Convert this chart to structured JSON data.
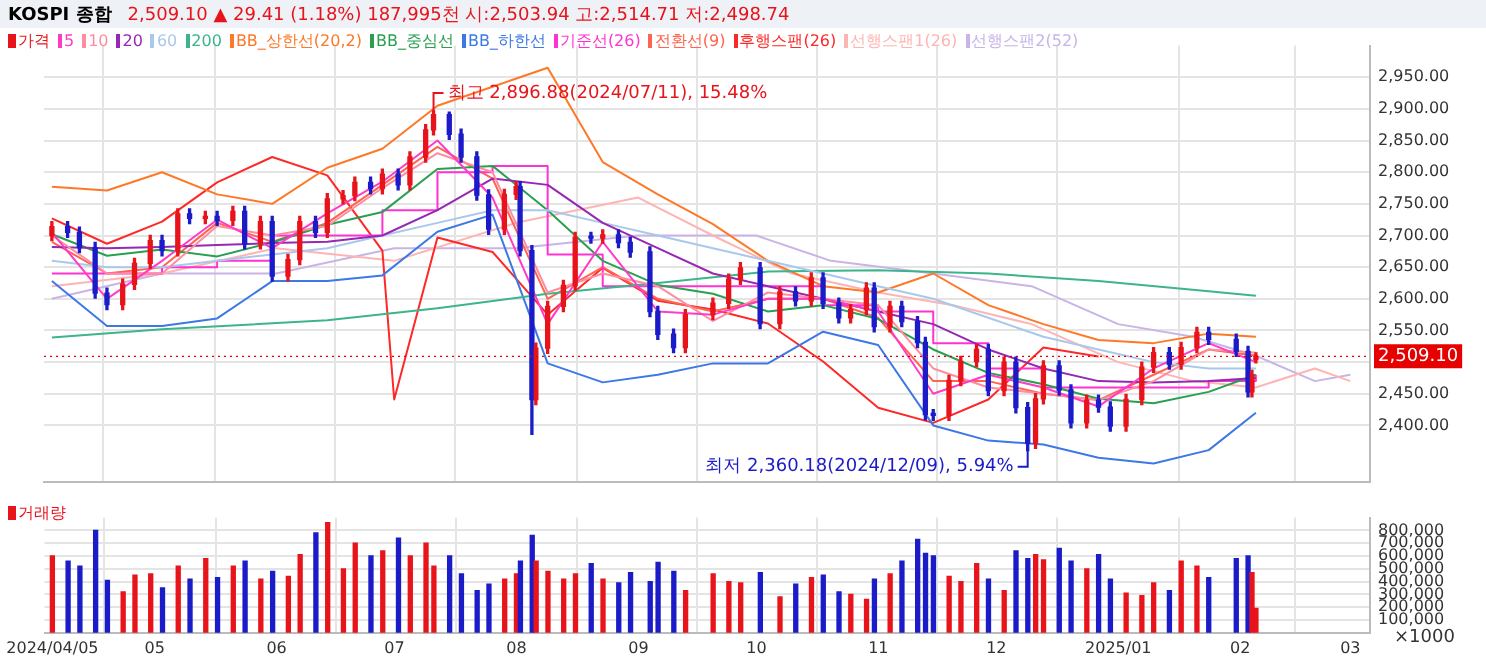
{
  "chart_data": [
    {
      "type": "candlestick",
      "title": "KOSPI 종합",
      "subtitle": "2,509.10 ▲ 29.41 (1.18%)  187,995천  시:2,503.94  고:2,514.71  저:2,498.74",
      "x": [
        "2024-04-05",
        "2024-04-19",
        "2024-05-03",
        "2024-05-17",
        "2024-05-31",
        "2024-06-14",
        "2024-06-28",
        "2024-07-12",
        "2024-07-26",
        "2024-08-09",
        "2024-08-23",
        "2024-09-06",
        "2024-09-20",
        "2024-10-04",
        "2024-10-18",
        "2024-11-01",
        "2024-11-15",
        "2024-11-29",
        "2024-12-13",
        "2024-12-27",
        "2025-01-10",
        "2025-01-24",
        "2025-02-05"
      ],
      "series": [
        {
          "name": "가격",
          "colors": [
            "#e8141b",
            "#1b1bc8",
            "#1b1bc8",
            "#1b1bc8",
            "#1b1bc8",
            "#e8141b",
            "#e8141b",
            "#e8141b",
            "#1b1bc8",
            "#e8141b",
            "#1b1bc8",
            "#e8141b",
            "#1b1bc8",
            "#e8141b",
            "#1b1bc8",
            "#e8141b",
            "#1b1bc8",
            "#e8141b",
            "#e8141b",
            "#1b1bc8",
            "#e8141b",
            "#e8141b",
            "#e8141b",
            "#1b1bc8",
            "#e8141b",
            "#1b1bc8",
            "#e8141b",
            "#e8141b",
            "#e8141b",
            "#1b1bc8",
            "#1b1bc8",
            "#1b1bc8",
            "#1b1bc8",
            "#e8141b",
            "#e8141b",
            "#1b1bc8",
            "#1b1bc8",
            "#e8141b",
            "#e8141b",
            "#e8141b",
            "#e8141b",
            "#1b1bc8",
            "#e8141b",
            "#1b1bc8",
            "#1b1bc8",
            "#1b1bc8",
            "#1b1bc8",
            "#1b1bc8",
            "#e8141b",
            "#e8141b",
            "#e8141b",
            "#e8141b",
            "#1b1bc8",
            "#e8141b",
            "#1b1bc8",
            "#e8141b",
            "#1b1bc8",
            "#1b1bc8",
            "#e8141b",
            "#e8141b",
            "#1b1bc8",
            "#e8141b",
            "#1b1bc8",
            "#1b1bc8",
            "#1b1bc8",
            "#1b1bc8",
            "#e8141b",
            "#e8141b",
            "#e8141b",
            "#1b1bc8",
            "#e8141b",
            "#1b1bc8",
            "#1b1bc8",
            "#e8141b",
            "#e8141b",
            "#1b1bc8",
            "#1b1bc8",
            "#e8141b",
            "#1b1bc8",
            "#1b1bc8",
            "#e8141b",
            "#e8141b",
            "#e8141b",
            "#1b1bc8",
            "#e8141b",
            "#e8141b",
            "#1b1bc8",
            "#1b1bc8",
            "#1b1bc8",
            "#e8141b",
            "#e8141b"
          ],
          "x": [
            "2024-04-05",
            "2024-04-09",
            "2024-04-12",
            "2024-04-16",
            "2024-04-19",
            "2024-04-23",
            "2024-04-26",
            "2024-04-30",
            "2024-05-03",
            "2024-05-07",
            "2024-05-10",
            "2024-05-14",
            "2024-05-17",
            "2024-05-21",
            "2024-05-24",
            "2024-05-28",
            "2024-05-31",
            "2024-06-04",
            "2024-06-07",
            "2024-06-11",
            "2024-06-14",
            "2024-06-18",
            "2024-06-21",
            "2024-06-25",
            "2024-06-28",
            "2024-07-02",
            "2024-07-05",
            "2024-07-09",
            "2024-07-11",
            "2024-07-15",
            "2024-07-18",
            "2024-07-22",
            "2024-07-25",
            "2024-07-29",
            "2024-08-01",
            "2024-08-02",
            "2024-08-05",
            "2024-08-06",
            "2024-08-09",
            "2024-08-13",
            "2024-08-16",
            "2024-08-20",
            "2024-08-23",
            "2024-08-27",
            "2024-08-30",
            "2024-09-04",
            "2024-09-06",
            "2024-09-10",
            "2024-09-13",
            "2024-09-20",
            "2024-09-24",
            "2024-09-27",
            "2024-10-02",
            "2024-10-07",
            "2024-10-11",
            "2024-10-15",
            "2024-10-18",
            "2024-10-22",
            "2024-10-25",
            "2024-10-29",
            "2024-10-31",
            "2024-11-04",
            "2024-11-07",
            "2024-11-11",
            "2024-11-13",
            "2024-11-15",
            "2024-11-19",
            "2024-11-22",
            "2024-11-26",
            "2024-11-29",
            "2024-12-03",
            "2024-12-06",
            "2024-12-09",
            "2024-12-11",
            "2024-12-13",
            "2024-12-17",
            "2024-12-20",
            "2024-12-24",
            "2024-12-27",
            "2024-12-30",
            "2025-01-03",
            "2025-01-07",
            "2025-01-10",
            "2025-01-14",
            "2025-01-17",
            "2025-01-21",
            "2025-01-24",
            "2025-01-31",
            "2025-02-03",
            "2025-02-04",
            "2025-02-05"
          ],
          "ohlc": [
            [
              2700,
              2722,
              2692,
              2714
            ],
            [
              2714,
              2722,
              2697,
              2705
            ],
            [
              2705,
              2713,
              2673,
              2681
            ],
            [
              2681,
              2689,
              2601,
              2609
            ],
            [
              2609,
              2617,
              2583,
              2591
            ],
            [
              2591,
              2631,
              2583,
              2623
            ],
            [
              2623,
              2664,
              2615,
              2656
            ],
            [
              2656,
              2700,
              2648,
              2692
            ],
            [
              2692,
              2700,
              2668,
              2676
            ],
            [
              2676,
              2742,
              2668,
              2734
            ],
            [
              2734,
              2742,
              2719,
              2727
            ],
            [
              2727,
              2738,
              2719,
              2730
            ],
            [
              2730,
              2738,
              2716,
              2724
            ],
            [
              2724,
              2746,
              2716,
              2738
            ],
            [
              2738,
              2746,
              2679,
              2687
            ],
            [
              2687,
              2730,
              2679,
              2722
            ],
            [
              2722,
              2730,
              2628,
              2636
            ],
            [
              2636,
              2670,
              2628,
              2662
            ],
            [
              2662,
              2730,
              2654,
              2722
            ],
            [
              2722,
              2730,
              2697,
              2705
            ],
            [
              2705,
              2766,
              2697,
              2758
            ],
            [
              2758,
              2771,
              2750,
              2763
            ],
            [
              2763,
              2792,
              2755,
              2784
            ],
            [
              2784,
              2792,
              2766,
              2774
            ],
            [
              2774,
              2805,
              2766,
              2797
            ],
            [
              2797,
              2805,
              2772,
              2780
            ],
            [
              2780,
              2832,
              2772,
              2824
            ],
            [
              2824,
              2875,
              2816,
              2867
            ],
            [
              2867,
              2896.88,
              2859,
              2891
            ],
            [
              2891,
              2895,
              2852,
              2860
            ],
            [
              2860,
              2868,
              2816,
              2824
            ],
            [
              2824,
              2832,
              2756,
              2764
            ],
            [
              2764,
              2772,
              2702,
              2710
            ],
            [
              2710,
              2773,
              2702,
              2765
            ],
            [
              2765,
              2785,
              2757,
              2777
            ],
            [
              2777,
              2785,
              2668,
              2676
            ],
            [
              2676,
              2684,
              2386,
              2441
            ],
            [
              2441,
              2530,
              2433,
              2522
            ],
            [
              2522,
              2596,
              2514,
              2588
            ],
            [
              2588,
              2629,
              2580,
              2621
            ],
            [
              2621,
              2705,
              2613,
              2697
            ],
            [
              2697,
              2705,
              2688,
              2696
            ],
            [
              2696,
              2709,
              2688,
              2701
            ],
            [
              2701,
              2709,
              2681,
              2689
            ],
            [
              2689,
              2697,
              2666,
              2674
            ],
            [
              2674,
              2682,
              2572,
              2580
            ],
            [
              2580,
              2588,
              2536,
              2544
            ],
            [
              2544,
              2552,
              2515,
              2523
            ],
            [
              2523,
              2583,
              2515,
              2575
            ],
            [
              2575,
              2601,
              2567,
              2593
            ],
            [
              2593,
              2639,
              2585,
              2631
            ],
            [
              2631,
              2657,
              2623,
              2649
            ],
            [
              2649,
              2657,
              2553,
              2561
            ],
            [
              2561,
              2619,
              2553,
              2611
            ],
            [
              2611,
              2619,
              2589,
              2597
            ],
            [
              2597,
              2641,
              2589,
              2633
            ],
            [
              2633,
              2641,
              2585,
              2593
            ],
            [
              2593,
              2601,
              2562,
              2570
            ],
            [
              2570,
              2591,
              2562,
              2583
            ],
            [
              2583,
              2625,
              2575,
              2617
            ],
            [
              2617,
              2625,
              2548,
              2556
            ],
            [
              2556,
              2596,
              2548,
              2588
            ],
            [
              2588,
              2596,
              2556,
              2564
            ],
            [
              2564,
              2572,
              2523,
              2531
            ],
            [
              2531,
              2539,
              2409,
              2417
            ],
            [
              2417,
              2425,
              2408,
              2416
            ],
            [
              2416,
              2479,
              2408,
              2471
            ],
            [
              2471,
              2509,
              2463,
              2501
            ],
            [
              2501,
              2528,
              2493,
              2520
            ],
            [
              2520,
              2528,
              2447,
              2455
            ],
            [
              2455,
              2508,
              2447,
              2500
            ],
            [
              2500,
              2508,
              2420,
              2428
            ],
            [
              2428,
              2436,
              2360.18,
              2372
            ],
            [
              2372,
              2450,
              2364,
              2442
            ],
            [
              2442,
              2502,
              2434,
              2494
            ],
            [
              2494,
              2502,
              2448,
              2456
            ],
            [
              2456,
              2464,
              2396,
              2404
            ],
            [
              2404,
              2448,
              2396,
              2440
            ],
            [
              2440,
              2448,
              2421,
              2429
            ],
            [
              2429,
              2437,
              2391,
              2399
            ],
            [
              2399,
              2449,
              2391,
              2441
            ],
            [
              2441,
              2500,
              2433,
              2492
            ],
            [
              2492,
              2523,
              2484,
              2515
            ],
            [
              2515,
              2523,
              2489,
              2497
            ],
            [
              2497,
              2531,
              2489,
              2523
            ],
            [
              2523,
              2555,
              2515,
              2547
            ],
            [
              2547,
              2555,
              2528,
              2536
            ],
            [
              2536,
              2544,
              2509,
              2517
            ],
            [
              2517,
              2525,
              2445,
              2453
            ],
            [
              2453,
              2487,
              2445,
              2479.69
            ],
            [
              2503.94,
              2514.71,
              2498.74,
              2509.1
            ]
          ]
        },
        {
          "name": "5",
          "type": "line",
          "color": "#ff3cc8",
          "values": [
            2705,
            2600,
            2660,
            2725,
            2680,
            2735,
            2785,
            2850,
            2760,
            2560,
            2690,
            2580,
            2575,
            2600,
            2600,
            2580,
            2450,
            2480,
            2460,
            2430,
            2490,
            2530,
            2500
          ]
        },
        {
          "name": "10",
          "type": "line",
          "color": "#ff8ca0",
          "values": [
            2700,
            2640,
            2640,
            2715,
            2700,
            2715,
            2775,
            2830,
            2800,
            2610,
            2640,
            2620,
            2565,
            2610,
            2600,
            2590,
            2490,
            2460,
            2450,
            2440,
            2470,
            2520,
            2515
          ]
        },
        {
          "name": "20",
          "type": "line",
          "color": "#9628b4",
          "values": [
            2682,
            2680,
            2682,
            2685,
            2688,
            2690,
            2700,
            2740,
            2790,
            2780,
            2720,
            2680,
            2640,
            2620,
            2600,
            2580,
            2560,
            2520,
            2490,
            2470,
            2468,
            2470,
            2475
          ]
        },
        {
          "name": "60",
          "type": "line",
          "color": "#a8c8ec",
          "values": [
            2660,
            2650,
            2650,
            2660,
            2670,
            2680,
            2700,
            2720,
            2740,
            2740,
            2720,
            2700,
            2680,
            2660,
            2640,
            2620,
            2600,
            2570,
            2540,
            2520,
            2500,
            2490,
            2490
          ]
        },
        {
          "name": "200",
          "type": "line",
          "color": "#3cb48c",
          "x": [
            "2024-04-05",
            "2024-05-03",
            "2024-06-14",
            "2024-07-12",
            "2024-08-09",
            "2024-09-06",
            "2024-10-04",
            "2024-11-01",
            "2024-11-29",
            "2024-12-27",
            "2025-01-24",
            "2025-02-05"
          ],
          "values": [
            2539,
            2552,
            2566,
            2585,
            2608,
            2625,
            2643,
            2645,
            2640,
            2628,
            2612,
            2605
          ]
        },
        {
          "name": "BB_상한선(20,2)",
          "type": "line",
          "color": "#ff7828",
          "values": [
            2777,
            2771,
            2800,
            2765,
            2750,
            2807,
            2837,
            2905,
            2935,
            2965,
            2816,
            2765,
            2718,
            2660,
            2620,
            2610,
            2640,
            2590,
            2560,
            2535,
            2530,
            2545,
            2540
          ]
        },
        {
          "name": "BB_중심선",
          "type": "line",
          "color": "#28a050",
          "values": [
            2702,
            2668,
            2678,
            2667,
            2689,
            2717,
            2737,
            2805,
            2810,
            2740,
            2660,
            2622,
            2608,
            2580,
            2590,
            2568,
            2520,
            2483,
            2465,
            2442,
            2435,
            2453,
            2480
          ]
        },
        {
          "name": "BB_하한선",
          "type": "line",
          "color": "#3c78e6",
          "values": [
            2628,
            2557,
            2557,
            2569,
            2628,
            2628,
            2637,
            2706,
            2733,
            2498,
            2468,
            2480,
            2498,
            2498,
            2548,
            2527,
            2400,
            2376,
            2370,
            2349,
            2340,
            2361,
            2420
          ]
        },
        {
          "name": "기준선(26)",
          "type": "step",
          "color": "#ff32d2",
          "values": [
            2640,
            2640,
            2650,
            2660,
            2700,
            2700,
            2740,
            2800,
            2810,
            2670,
            2620,
            2620,
            2620,
            2620,
            2590,
            2580,
            2530,
            2490,
            2460,
            2460,
            2460,
            2470,
            2480
          ]
        },
        {
          "name": "전환선(9)",
          "type": "line",
          "color": "#ff6450",
          "values": [
            2690,
            2640,
            2650,
            2720,
            2690,
            2720,
            2780,
            2840,
            2790,
            2600,
            2650,
            2600,
            2580,
            2600,
            2600,
            2570,
            2470,
            2470,
            2450,
            2440,
            2480,
            2520,
            2510
          ]
        },
        {
          "name": "후행스팬(26)",
          "type": "line",
          "color": "#ff2828",
          "x": [
            "2024-04-05",
            "2024-04-19",
            "2024-05-03",
            "2024-05-17",
            "2024-05-31",
            "2024-06-14",
            "2024-06-28",
            "2024-07-01",
            "2024-07-12",
            "2024-07-26",
            "2024-08-09",
            "2024-08-23",
            "2024-09-06",
            "2024-09-20",
            "2024-10-04",
            "2024-10-18",
            "2024-11-01",
            "2024-11-15",
            "2024-11-29",
            "2024-12-13",
            "2024-12-27"
          ],
          "values": [
            2727,
            2687,
            2722,
            2784,
            2824,
            2795,
            2676,
            2441,
            2697,
            2674,
            2575,
            2649,
            2597,
            2583,
            2561,
            2501,
            2428,
            2404,
            2441,
            2523,
            2509
          ]
        },
        {
          "name": "선행스팬1(26)",
          "type": "line",
          "color": "#ffb4b4",
          "x": [
            "2024-04-05",
            "2024-05-03",
            "2024-06-01",
            "2024-07-01",
            "2024-08-01",
            "2024-09-01",
            "2024-09-20",
            "2024-10-10",
            "2024-11-01",
            "2024-11-20",
            "2024-12-10",
            "2025-01-01",
            "2025-01-20",
            "2025-02-05",
            "2025-02-20",
            "2025-03-01"
          ],
          "values": [
            2620,
            2640,
            2680,
            2660,
            2720,
            2760,
            2700,
            2640,
            2610,
            2590,
            2560,
            2500,
            2470,
            2460,
            2490,
            2470
          ]
        },
        {
          "name": "선행스팬2(52)",
          "type": "line",
          "color": "#c8b4e6",
          "x": [
            "2024-04-05",
            "2024-05-03",
            "2024-06-01",
            "2024-07-01",
            "2024-08-01",
            "2024-09-01",
            "2024-10-01",
            "2024-10-20",
            "2024-11-15",
            "2024-12-10",
            "2025-01-01",
            "2025-01-20",
            "2025-02-05",
            "2025-02-20",
            "2025-03-01"
          ],
          "values": [
            2600,
            2640,
            2640,
            2680,
            2680,
            2700,
            2700,
            2660,
            2640,
            2620,
            2560,
            2540,
            2510,
            2470,
            2480
          ]
        }
      ],
      "annotations": [
        {
          "text": "최고 2,896.88(2024/07/11), 15.48%",
          "x": "2024-07-11",
          "y": 2896.88
        },
        {
          "text": "최저 2,360.18(2024/12/09), 5.94%",
          "x": "2024-12-09",
          "y": 2360.18
        }
      ],
      "ref_lines": [
        {
          "axis": "y",
          "value": 2509.1,
          "label": "2,509.10",
          "color": "#e60000"
        }
      ],
      "xlim": [
        "2024-04-03",
        "2025-03-06"
      ],
      "xticks": [
        {
          "value": "2024-04-05",
          "label": null
        },
        {
          "value": "2024-05-01",
          "label": null
        },
        {
          "value": "2024-06-01",
          "label": null
        },
        {
          "value": "2024-07-01",
          "label": null
        },
        {
          "value": "2024-08-01",
          "label": null
        },
        {
          "value": "2024-09-01",
          "label": null
        },
        {
          "value": "2024-10-01",
          "label": null
        },
        {
          "value": "2024-11-01",
          "label": null
        },
        {
          "value": "2024-12-01",
          "label": null
        },
        {
          "value": "2025-01-01",
          "label": null
        },
        {
          "value": "2025-02-01",
          "label": null
        },
        {
          "value": "2025-03-01",
          "label": null
        }
      ],
      "ylim": [
        2310,
        3000
      ],
      "yticks": [
        {
          "value": 2400,
          "label": "2,400.00"
        },
        {
          "value": 2450,
          "label": "2,450.00"
        },
        {
          "value": 2500,
          "label": null
        },
        {
          "value": 2550,
          "label": "2,550.00"
        },
        {
          "value": 2600,
          "label": "2,600.00"
        },
        {
          "value": 2650,
          "label": "2,650.00"
        },
        {
          "value": 2700,
          "label": "2,700.00"
        },
        {
          "value": 2750,
          "label": "2,750.00"
        },
        {
          "value": 2800,
          "label": "2,800.00"
        },
        {
          "value": 2850,
          "label": "2,850.00"
        },
        {
          "value": 2900,
          "label": "2,900.00"
        },
        {
          "value": 2950,
          "label": "2,950.00"
        }
      ],
      "grid": true,
      "legend": "top left",
      "tick_labels": "y"
    },
    {
      "type": "bar",
      "x": [
        "2024-04-05",
        "2024-04-09",
        "2024-04-12",
        "2024-04-16",
        "2024-04-19",
        "2024-04-23",
        "2024-04-26",
        "2024-04-30",
        "2024-05-03",
        "2024-05-07",
        "2024-05-10",
        "2024-05-14",
        "2024-05-17",
        "2024-05-21",
        "2024-05-24",
        "2024-05-28",
        "2024-05-31",
        "2024-06-04",
        "2024-06-07",
        "2024-06-11",
        "2024-06-14",
        "2024-06-18",
        "2024-06-21",
        "2024-06-25",
        "2024-06-28",
        "2024-07-02",
        "2024-07-05",
        "2024-07-09",
        "2024-07-11",
        "2024-07-15",
        "2024-07-18",
        "2024-07-22",
        "2024-07-25",
        "2024-07-29",
        "2024-08-01",
        "2024-08-02",
        "2024-08-05",
        "2024-08-06",
        "2024-08-09",
        "2024-08-13",
        "2024-08-16",
        "2024-08-20",
        "2024-08-23",
        "2024-08-27",
        "2024-08-30",
        "2024-09-04",
        "2024-09-06",
        "2024-09-10",
        "2024-09-13",
        "2024-09-20",
        "2024-09-24",
        "2024-09-27",
        "2024-10-02",
        "2024-10-07",
        "2024-10-11",
        "2024-10-15",
        "2024-10-18",
        "2024-10-22",
        "2024-10-25",
        "2024-10-29",
        "2024-10-31",
        "2024-11-04",
        "2024-11-07",
        "2024-11-11",
        "2024-11-13",
        "2024-11-15",
        "2024-11-19",
        "2024-11-22",
        "2024-11-26",
        "2024-11-29",
        "2024-12-03",
        "2024-12-06",
        "2024-12-09",
        "2024-12-11",
        "2024-12-13",
        "2024-12-17",
        "2024-12-20",
        "2024-12-24",
        "2024-12-27",
        "2024-12-30",
        "2025-01-03",
        "2025-01-07",
        "2025-01-10",
        "2025-01-14",
        "2025-01-17",
        "2025-01-21",
        "2025-01-24",
        "2025-01-31",
        "2025-02-03",
        "2025-02-04",
        "2025-02-05"
      ],
      "series": [
        {
          "name": "거래량",
          "colors": [
            "#e8141b",
            "#1b1bc8",
            "#1b1bc8",
            "#1b1bc8",
            "#1b1bc8",
            "#e8141b",
            "#e8141b",
            "#e8141b",
            "#1b1bc8",
            "#e8141b",
            "#1b1bc8",
            "#e8141b",
            "#1b1bc8",
            "#e8141b",
            "#1b1bc8",
            "#e8141b",
            "#1b1bc8",
            "#e8141b",
            "#e8141b",
            "#1b1bc8",
            "#e8141b",
            "#e8141b",
            "#e8141b",
            "#1b1bc8",
            "#e8141b",
            "#1b1bc8",
            "#e8141b",
            "#e8141b",
            "#e8141b",
            "#1b1bc8",
            "#1b1bc8",
            "#1b1bc8",
            "#1b1bc8",
            "#e8141b",
            "#e8141b",
            "#1b1bc8",
            "#1b1bc8",
            "#e8141b",
            "#e8141b",
            "#e8141b",
            "#e8141b",
            "#1b1bc8",
            "#e8141b",
            "#1b1bc8",
            "#1b1bc8",
            "#1b1bc8",
            "#1b1bc8",
            "#1b1bc8",
            "#e8141b",
            "#e8141b",
            "#e8141b",
            "#e8141b",
            "#1b1bc8",
            "#e8141b",
            "#1b1bc8",
            "#e8141b",
            "#1b1bc8",
            "#1b1bc8",
            "#e8141b",
            "#e8141b",
            "#1b1bc8",
            "#e8141b",
            "#1b1bc8",
            "#1b1bc8",
            "#1b1bc8",
            "#1b1bc8",
            "#e8141b",
            "#e8141b",
            "#e8141b",
            "#1b1bc8",
            "#e8141b",
            "#1b1bc8",
            "#1b1bc8",
            "#e8141b",
            "#e8141b",
            "#1b1bc8",
            "#1b1bc8",
            "#e8141b",
            "#1b1bc8",
            "#1b1bc8",
            "#e8141b",
            "#e8141b",
            "#e8141b",
            "#1b1bc8",
            "#e8141b",
            "#e8141b",
            "#1b1bc8",
            "#1b1bc8",
            "#1b1bc8",
            "#e8141b",
            "#e8141b"
          ],
          "values": [
            600000,
            560000,
            520000,
            800000,
            410000,
            320000,
            450000,
            460000,
            350000,
            520000,
            420000,
            580000,
            430000,
            520000,
            560000,
            420000,
            480000,
            440000,
            610000,
            780000,
            860000,
            500000,
            700000,
            600000,
            640000,
            740000,
            600000,
            700000,
            520000,
            600000,
            460000,
            330000,
            380000,
            420000,
            460000,
            560000,
            760000,
            560000,
            480000,
            420000,
            460000,
            540000,
            420000,
            390000,
            470000,
            400000,
            550000,
            480000,
            330000,
            460000,
            400000,
            390000,
            470000,
            280000,
            380000,
            430000,
            450000,
            320000,
            300000,
            260000,
            420000,
            460000,
            560000,
            730000,
            620000,
            600000,
            440000,
            400000,
            540000,
            420000,
            330000,
            640000,
            580000,
            610000,
            570000,
            660000,
            560000,
            500000,
            610000,
            420000,
            310000,
            290000,
            390000,
            330000,
            560000,
            520000,
            430000,
            580000,
            600000,
            470000,
            190000
          ]
        }
      ],
      "annotations": [
        "×1000"
      ],
      "xlim": [
        "2024-04-03",
        "2025-03-06"
      ],
      "xticks": [
        {
          "value": "2024-04-05",
          "label": "2024/04/05"
        },
        {
          "value": "2024-05-01",
          "label": "05"
        },
        {
          "value": "2024-06-01",
          "label": "06"
        },
        {
          "value": "2024-07-01",
          "label": "07"
        },
        {
          "value": "2024-08-01",
          "label": "08"
        },
        {
          "value": "2024-09-01",
          "label": "09"
        },
        {
          "value": "2024-10-01",
          "label": "10"
        },
        {
          "value": "2024-11-01",
          "label": "11"
        },
        {
          "value": "2024-12-01",
          "label": "12"
        },
        {
          "value": "2025-01-01",
          "label": "2025/01"
        },
        {
          "value": "2025-02-01",
          "label": "02"
        },
        {
          "value": "2025-03-01",
          "label": "03"
        }
      ],
      "ylim": [
        0,
        900000
      ],
      "yticks": [
        {
          "value": 100000,
          "label": "100,000"
        },
        {
          "value": 200000,
          "label": "200,000"
        },
        {
          "value": 300000,
          "label": "300,000"
        },
        {
          "value": 400000,
          "label": "400,000"
        },
        {
          "value": 500000,
          "label": "500,000"
        },
        {
          "value": 600000,
          "label": "600,000"
        },
        {
          "value": 700000,
          "label": "700,000"
        },
        {
          "value": 800000,
          "label": "800,000"
        }
      ],
      "grid": true,
      "legend": "top left"
    }
  ]
}
